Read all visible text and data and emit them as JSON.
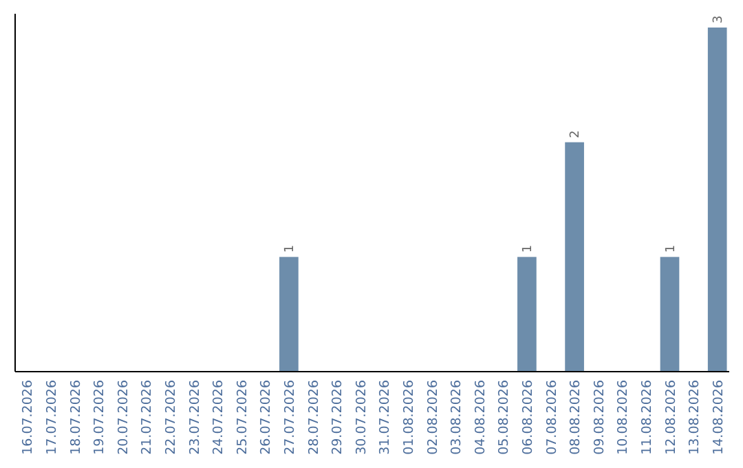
{
  "chart_data": {
    "type": "bar",
    "categories": [
      "16.07.2026",
      "17.07.2026",
      "18.07.2026",
      "19.07.2026",
      "20.07.2026",
      "21.07.2026",
      "22.07.2026",
      "23.07.2026",
      "24.07.2026",
      "25.07.2026",
      "26.07.2026",
      "27.07.2026",
      "28.07.2026",
      "29.07.2026",
      "30.07.2026",
      "31.07.2026",
      "01.08.2026",
      "02.08.2026",
      "03.08.2026",
      "04.08.2026",
      "05.08.2026",
      "06.08.2026",
      "07.08.2026",
      "08.08.2026",
      "09.08.2026",
      "10.08.2026",
      "11.08.2026",
      "12.08.2026",
      "13.08.2026",
      "14.08.2026"
    ],
    "values": [
      0,
      0,
      0,
      0,
      0,
      0,
      0,
      0,
      0,
      0,
      0,
      1,
      0,
      0,
      0,
      0,
      0,
      0,
      0,
      0,
      0,
      1,
      0,
      2,
      0,
      0,
      0,
      1,
      0,
      3
    ],
    "value_labels": [
      null,
      null,
      null,
      null,
      null,
      null,
      null,
      null,
      null,
      null,
      null,
      "1",
      null,
      null,
      null,
      null,
      null,
      null,
      null,
      null,
      null,
      "1",
      null,
      "2",
      null,
      null,
      null,
      "1",
      null,
      "3"
    ],
    "color": "#6d8dab"
  }
}
